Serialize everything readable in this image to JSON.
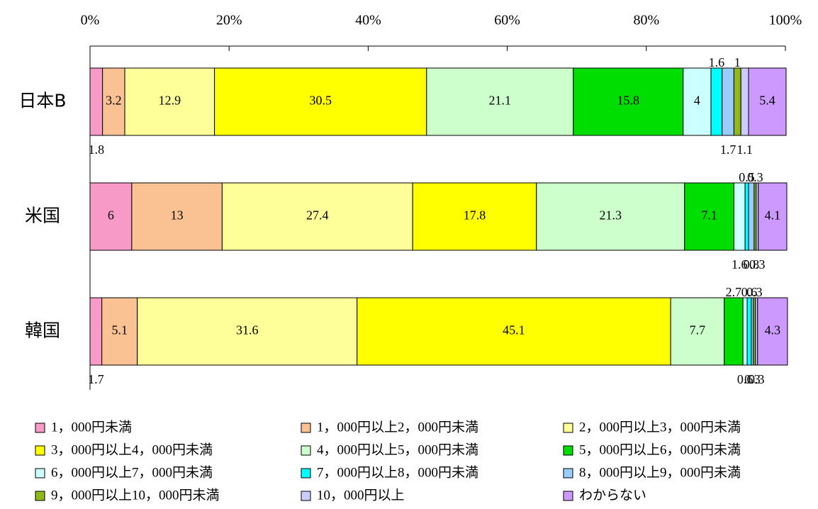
{
  "chart_data": {
    "type": "stacked_barh",
    "categories": [
      "日本B",
      "米国",
      "韓国"
    ],
    "xlim": [
      0,
      100
    ],
    "xticks": [
      {
        "value": 0,
        "label": "0%"
      },
      {
        "value": 20,
        "label": "20%"
      },
      {
        "value": 40,
        "label": "40%"
      },
      {
        "value": 60,
        "label": "60%"
      },
      {
        "value": 80,
        "label": "80%"
      },
      {
        "value": 100,
        "label": "100%"
      }
    ],
    "series": [
      {
        "name": "1，000円未満",
        "color": "#f79ac8",
        "values": [
          1.8,
          6.0,
          1.7
        ]
      },
      {
        "name": "1，000円以上2，000円未満",
        "color": "#fac192",
        "values": [
          3.2,
          13.0,
          5.1
        ]
      },
      {
        "name": "2，000円以上3，000円未満",
        "color": "#ffff99",
        "values": [
          12.9,
          27.4,
          31.6
        ]
      },
      {
        "name": "3，000円以上4，000円未満",
        "color": "#ffff00",
        "values": [
          30.5,
          17.8,
          45.1
        ]
      },
      {
        "name": "4，000円以上5，000円未満",
        "color": "#ccffcc",
        "values": [
          21.1,
          21.3,
          7.7
        ]
      },
      {
        "name": "5，000円以上6，000円未満",
        "color": "#00dd00",
        "values": [
          15.8,
          7.1,
          2.7
        ]
      },
      {
        "name": "6，000円以上7，000円未満",
        "color": "#ccffff",
        "values": [
          4.0,
          1.6,
          0.6
        ]
      },
      {
        "name": "7，000円以上8，000円未満",
        "color": "#00ffff",
        "values": [
          1.6,
          0.5,
          0.6
        ]
      },
      {
        "name": "8，000円以上9，000円未満",
        "color": "#99ccff",
        "values": [
          1.7,
          0.8,
          0.3
        ]
      },
      {
        "name": "9，000円以上10，000円未満",
        "color": "#8fb81a",
        "values": [
          1.0,
          0.3,
          0.3
        ]
      },
      {
        "name": "10，000円以上",
        "color": "#ccccff",
        "values": [
          1.1,
          0.3,
          0.3
        ]
      },
      {
        "name": "わからない",
        "color": "#cc99ff",
        "values": [
          5.4,
          4.1,
          4.3
        ]
      }
    ]
  }
}
